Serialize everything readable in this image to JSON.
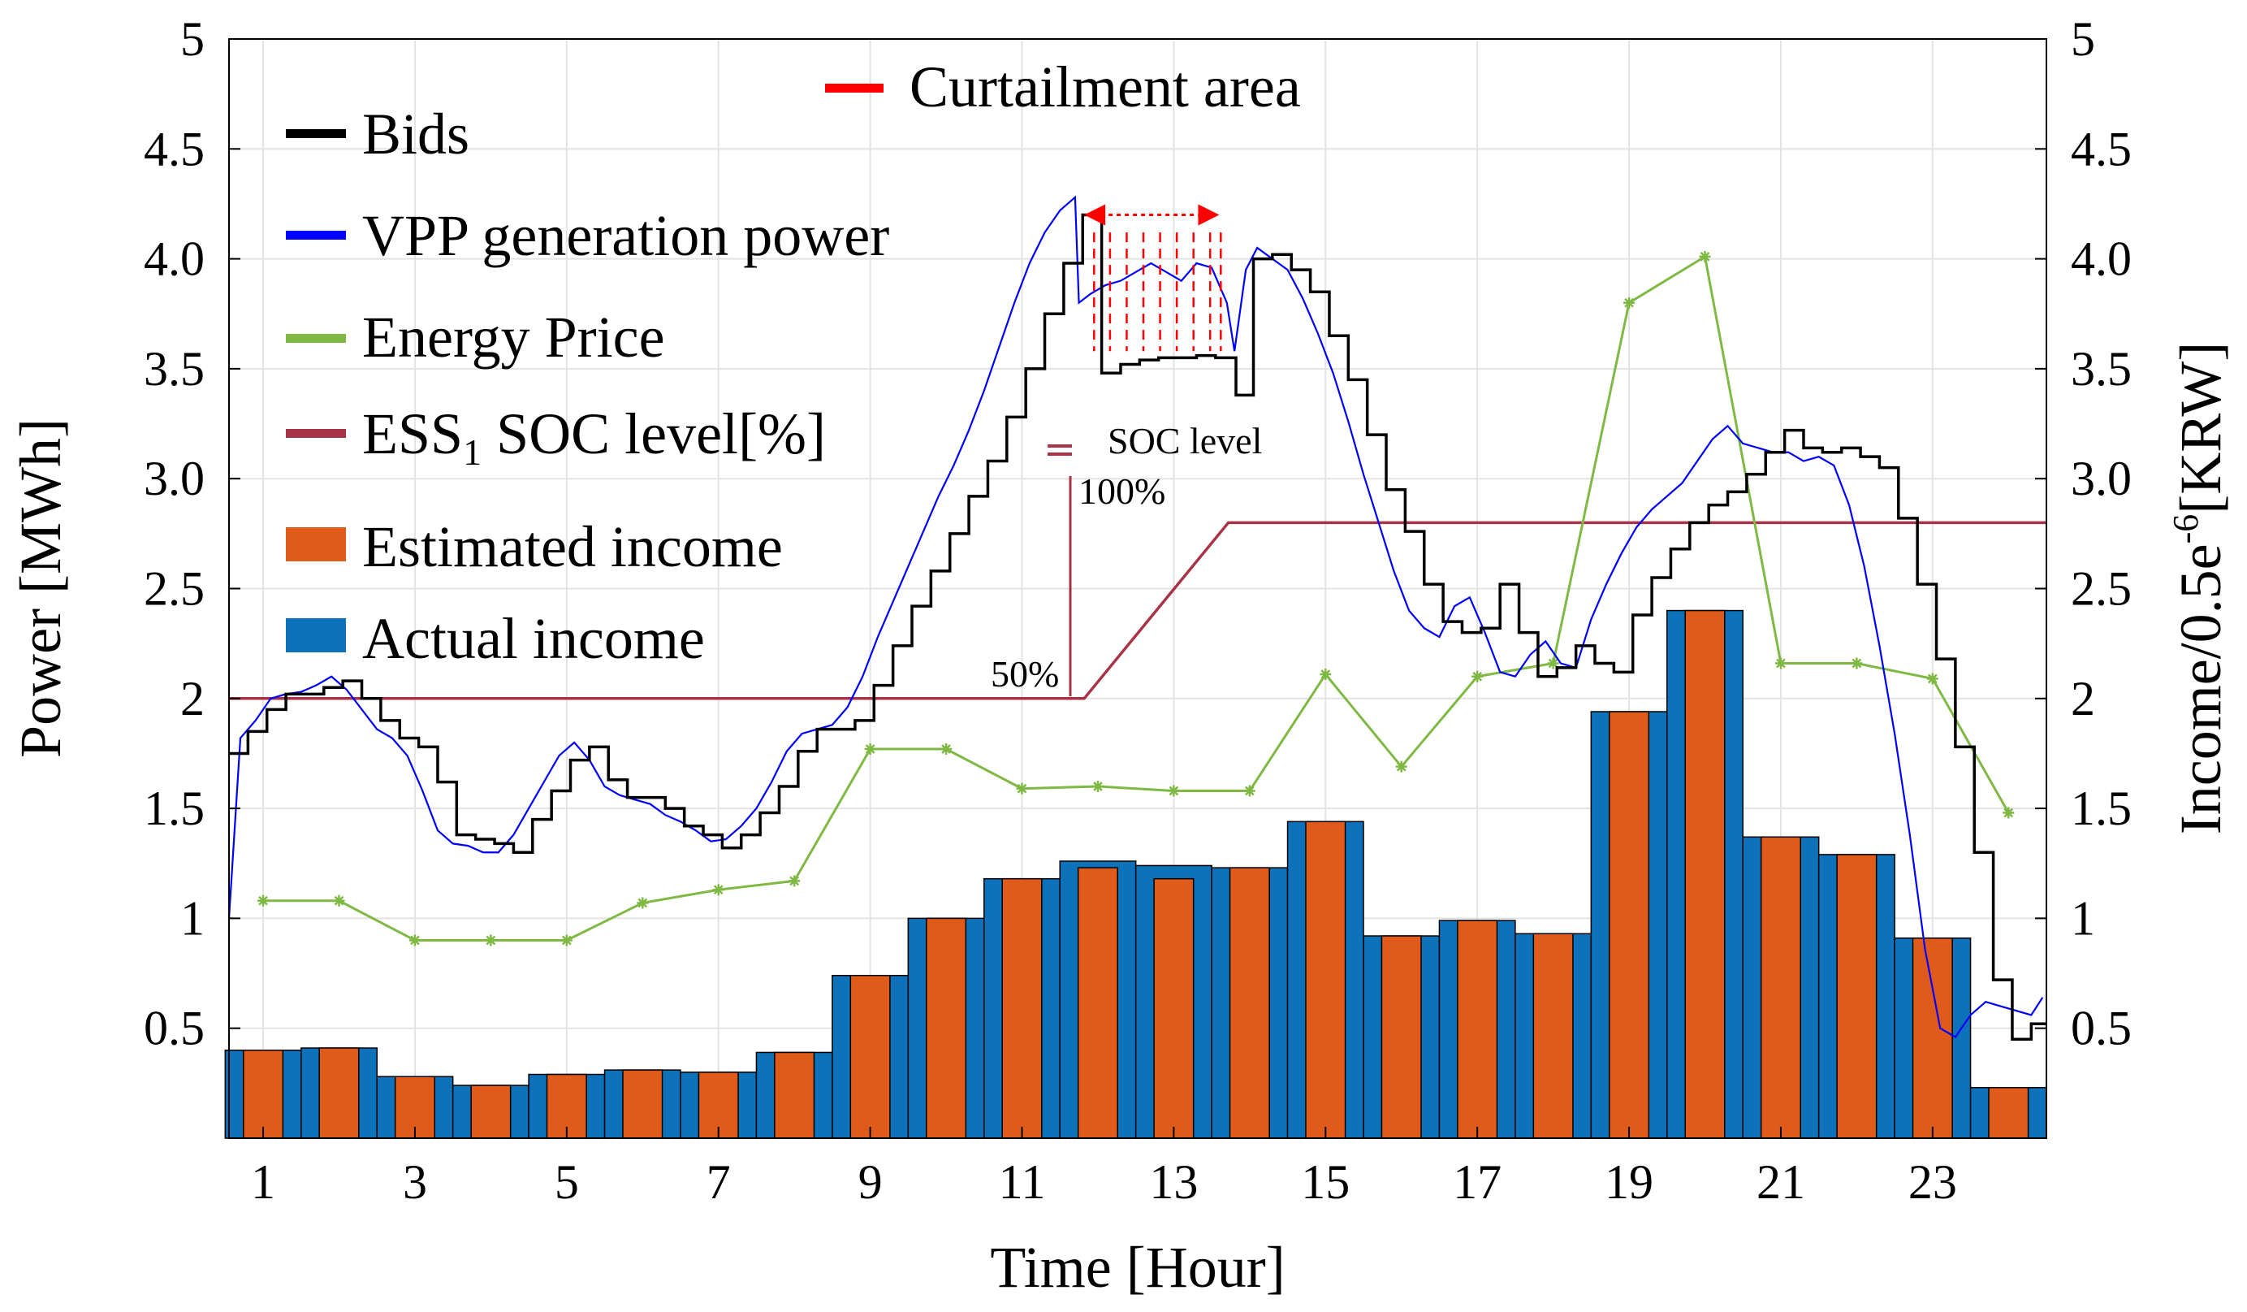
{
  "chart_data": {
    "type": "bar",
    "xlabel": "Time [Hour]",
    "ylabel_left": "Power [MWh]",
    "ylabel_right_pre": "Income/0.5e",
    "ylabel_right_sup": "-6",
    "ylabel_right_post": "[KRW]",
    "xlim": [
      0.55,
      24.5
    ],
    "ylim": [
      0,
      5
    ],
    "grid": true,
    "x_ticks": [
      "1",
      "3",
      "5",
      "7",
      "9",
      "11",
      "13",
      "15",
      "17",
      "19",
      "21",
      "23"
    ],
    "y_ticks_left": [
      "0.5",
      "1",
      "1.5",
      "2",
      "2.5",
      "3.0",
      "3.5",
      "4.0",
      "4.5",
      "5"
    ],
    "y_ticks_right": [
      "0.5",
      "1",
      "1.5",
      "2",
      "2.5",
      "3.0",
      "3.5",
      "4.0",
      "4.5",
      "5"
    ],
    "legend": {
      "position": "top-left",
      "entries": [
        {
          "label": "Bids",
          "color": "#000000"
        },
        {
          "label": "VPP generation power",
          "color": "#0000ff"
        },
        {
          "label": "Energy Price",
          "color": "#7fb944"
        },
        {
          "label_pre": "ESS",
          "label_sub": "1",
          "label_post": " SOC level[%]",
          "color": "#a83246"
        },
        {
          "label": "Estimated income",
          "color": "#e05a1a"
        },
        {
          "label": "Actual income",
          "color": "#0d72ba"
        }
      ]
    },
    "curtailment_legend": {
      "label": "Curtailment area",
      "color": "#ff0000"
    },
    "annotations": {
      "soc_label": "SOC level",
      "soc_100": "100%",
      "soc_50": "50%"
    },
    "colors": {
      "actual": "#0d72ba",
      "estimated": "#e05a1a",
      "price": "#7fb944",
      "soc": "#a83246",
      "bids": "#000000",
      "vpp": "#0000ff",
      "curtail": "#ff0000"
    },
    "income_hours": [
      1,
      2,
      3,
      4,
      5,
      6,
      7,
      8,
      9,
      10,
      11,
      12,
      13,
      14,
      15,
      16,
      17,
      18,
      19,
      20,
      21,
      22,
      23,
      24
    ],
    "actual_income": [
      0.4,
      0.41,
      0.28,
      0.24,
      0.29,
      0.31,
      0.3,
      0.39,
      0.74,
      1.0,
      1.18,
      1.26,
      1.24,
      1.23,
      1.44,
      0.92,
      0.99,
      0.93,
      1.94,
      2.4,
      1.37,
      1.29,
      0.91,
      0.23
    ],
    "estimated_income": [
      0.4,
      0.41,
      0.28,
      0.24,
      0.29,
      0.31,
      0.3,
      0.39,
      0.74,
      1.0,
      1.18,
      1.23,
      1.18,
      1.23,
      1.44,
      0.92,
      0.99,
      0.93,
      1.94,
      2.4,
      1.37,
      1.29,
      0.91,
      0.23
    ],
    "energy_price": {
      "x": [
        1,
        2,
        3,
        4,
        5,
        6,
        7,
        8,
        9,
        10,
        11,
        12,
        13,
        14,
        15,
        16,
        17,
        18,
        19,
        20,
        21,
        22,
        23,
        24
      ],
      "y": [
        1.08,
        1.08,
        0.9,
        0.9,
        0.9,
        1.07,
        1.13,
        1.17,
        1.77,
        1.77,
        1.59,
        1.6,
        1.58,
        1.58,
        2.11,
        1.69,
        2.1,
        2.16,
        3.8,
        4.01,
        2.16,
        2.16,
        2.09,
        1.48
      ]
    },
    "soc_level": {
      "x": [
        0.55,
        11.6,
        11.82,
        13.72,
        24.5
      ],
      "y": [
        2.0,
        2.0,
        2.0,
        2.8,
        2.8
      ]
    },
    "bids": {
      "x": [
        0.55,
        0.8,
        1.05,
        1.3,
        1.55,
        1.8,
        2.05,
        2.3,
        2.55,
        2.8,
        3.05,
        3.3,
        3.55,
        3.8,
        4.05,
        4.3,
        4.55,
        4.8,
        5.05,
        5.3,
        5.55,
        5.8,
        6.05,
        6.3,
        6.55,
        6.8,
        7.05,
        7.3,
        7.55,
        7.8,
        8.05,
        8.3,
        8.55,
        8.8,
        9.05,
        9.3,
        9.55,
        9.8,
        10.05,
        10.3,
        10.55,
        10.8,
        11.05,
        11.3,
        11.55,
        11.8,
        12.05,
        12.3,
        12.55,
        12.8,
        13.05,
        13.3,
        13.55,
        13.82,
        14.05,
        14.3,
        14.55,
        14.8,
        15.05,
        15.3,
        15.55,
        15.8,
        16.05,
        16.3,
        16.55,
        16.8,
        17.05,
        17.3,
        17.55,
        17.8,
        18.05,
        18.3,
        18.55,
        18.8,
        19.05,
        19.3,
        19.55,
        19.8,
        20.05,
        20.3,
        20.55,
        20.8,
        21.05,
        21.3,
        21.55,
        21.8,
        22.05,
        22.3,
        22.55,
        22.8,
        23.05,
        23.3,
        23.55,
        23.8,
        24.05,
        24.3
      ],
      "y": [
        1.75,
        1.85,
        1.95,
        2.02,
        2.02,
        2.05,
        2.08,
        2.0,
        1.9,
        1.82,
        1.78,
        1.62,
        1.38,
        1.36,
        1.34,
        1.3,
        1.45,
        1.58,
        1.72,
        1.78,
        1.63,
        1.55,
        1.55,
        1.5,
        1.42,
        1.38,
        1.32,
        1.38,
        1.48,
        1.6,
        1.76,
        1.86,
        1.86,
        1.9,
        2.06,
        2.24,
        2.42,
        2.58,
        2.75,
        2.92,
        3.08,
        3.28,
        3.5,
        3.75,
        3.98,
        4.2,
        3.48,
        3.52,
        3.54,
        3.55,
        3.55,
        3.56,
        3.55,
        3.38,
        4.0,
        4.02,
        3.95,
        3.85,
        3.65,
        3.45,
        3.2,
        2.95,
        2.76,
        2.52,
        2.35,
        2.3,
        2.32,
        2.52,
        2.3,
        2.1,
        2.14,
        2.24,
        2.16,
        2.12,
        2.38,
        2.55,
        2.68,
        2.8,
        2.88,
        2.94,
        3.02,
        3.12,
        3.22,
        3.14,
        3.12,
        3.14,
        3.1,
        3.05,
        2.82,
        2.52,
        2.18,
        1.78,
        1.3,
        0.72,
        0.45,
        0.52
      ]
    },
    "vpp_power": {
      "x": [
        0.55,
        0.7,
        0.9,
        1.1,
        1.3,
        1.5,
        1.7,
        1.9,
        2.1,
        2.3,
        2.5,
        2.7,
        2.9,
        3.1,
        3.3,
        3.5,
        3.7,
        3.9,
        4.1,
        4.3,
        4.5,
        4.7,
        4.9,
        5.1,
        5.3,
        5.5,
        5.7,
        5.9,
        6.1,
        6.3,
        6.5,
        6.7,
        6.9,
        7.1,
        7.3,
        7.5,
        7.7,
        7.9,
        8.1,
        8.3,
        8.5,
        8.7,
        8.9,
        9.1,
        9.3,
        9.5,
        9.7,
        9.9,
        10.1,
        10.3,
        10.5,
        10.7,
        10.9,
        11.1,
        11.3,
        11.5,
        11.7,
        11.75,
        11.9,
        12.1,
        12.3,
        12.5,
        12.7,
        12.9,
        13.1,
        13.3,
        13.5,
        13.7,
        13.8,
        13.95,
        14.1,
        14.3,
        14.5,
        14.7,
        14.9,
        15.1,
        15.3,
        15.5,
        15.7,
        15.9,
        16.1,
        16.3,
        16.5,
        16.7,
        16.9,
        17.1,
        17.3,
        17.5,
        17.7,
        17.9,
        18.1,
        18.3,
        18.5,
        18.7,
        18.9,
        19.1,
        19.3,
        19.5,
        19.7,
        19.9,
        20.1,
        20.3,
        20.5,
        20.7,
        20.9,
        21.1,
        21.3,
        21.5,
        21.7,
        21.9,
        22.1,
        22.3,
        22.5,
        22.7,
        22.9,
        23.1,
        23.3,
        23.5,
        23.7,
        23.9,
        24.1,
        24.3,
        24.45
      ],
      "y": [
        1.0,
        1.82,
        1.9,
        2.0,
        2.02,
        2.03,
        2.06,
        2.1,
        2.04,
        1.95,
        1.86,
        1.82,
        1.74,
        1.58,
        1.4,
        1.34,
        1.33,
        1.3,
        1.3,
        1.38,
        1.5,
        1.62,
        1.74,
        1.8,
        1.72,
        1.6,
        1.56,
        1.54,
        1.52,
        1.47,
        1.44,
        1.4,
        1.35,
        1.36,
        1.42,
        1.5,
        1.62,
        1.76,
        1.84,
        1.86,
        1.88,
        1.96,
        2.1,
        2.28,
        2.44,
        2.6,
        2.76,
        2.92,
        3.06,
        3.22,
        3.4,
        3.6,
        3.8,
        3.98,
        4.12,
        4.22,
        4.28,
        3.8,
        3.84,
        3.88,
        3.9,
        3.94,
        3.98,
        3.94,
        3.9,
        3.98,
        3.96,
        3.8,
        3.58,
        3.95,
        4.05,
        4.0,
        3.95,
        3.82,
        3.66,
        3.48,
        3.26,
        3.02,
        2.8,
        2.58,
        2.4,
        2.32,
        2.28,
        2.42,
        2.46,
        2.3,
        2.12,
        2.1,
        2.2,
        2.26,
        2.16,
        2.14,
        2.36,
        2.52,
        2.66,
        2.78,
        2.86,
        2.92,
        2.98,
        3.08,
        3.18,
        3.24,
        3.16,
        3.14,
        3.12,
        3.12,
        3.08,
        3.1,
        3.06,
        2.88,
        2.6,
        2.24,
        1.84,
        1.38,
        0.86,
        0.5,
        0.46,
        0.56,
        0.62,
        0.6,
        0.58,
        0.56,
        0.64
      ]
    },
    "curtailment": {
      "arrow_x": [
        11.82,
        13.6
      ],
      "arrow_y": 4.2,
      "lines_x": [
        11.95,
        12.16,
        12.38,
        12.6,
        12.82,
        13.04,
        13.26,
        13.48,
        13.62
      ],
      "line_top": 4.12,
      "line_bottom": 3.58
    }
  }
}
